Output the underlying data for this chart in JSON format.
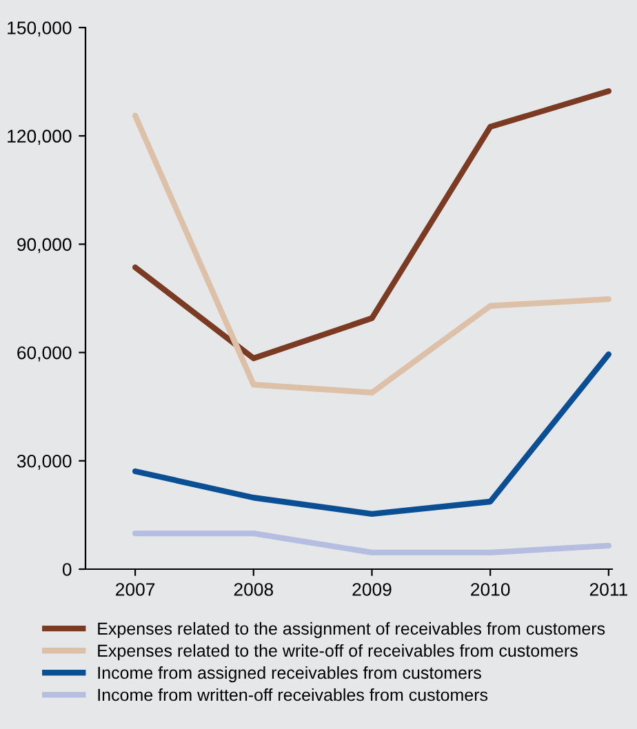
{
  "chart_data": {
    "type": "line",
    "categories": [
      "2007",
      "2008",
      "2009",
      "2010",
      "2011"
    ],
    "ylim": [
      0,
      150000
    ],
    "yticks": [
      {
        "value": 0,
        "label": "0"
      },
      {
        "value": 30000,
        "label": "30,000"
      },
      {
        "value": 60000,
        "label": "60,000"
      },
      {
        "value": 90000,
        "label": "90,000"
      },
      {
        "value": 120000,
        "label": "120,000"
      },
      {
        "value": 150000,
        "label": "150,000"
      }
    ],
    "grid": false,
    "legend": "bottom",
    "marker": "none",
    "line_style": "solid",
    "series": [
      {
        "name": "Expenses related to the assignment of receivables from customers",
        "color": "#7b3a22",
        "values": [
          83600,
          58400,
          69500,
          122500,
          132400
        ]
      },
      {
        "name": "Expenses related to the write-off of receivables from customers",
        "color": "#dcc0a8",
        "values": [
          125600,
          51100,
          48900,
          72900,
          74800
        ]
      },
      {
        "name": "Income from assigned receivables from customers",
        "color": "#0a4f93",
        "values": [
          27100,
          19800,
          15300,
          18700,
          59500
        ]
      },
      {
        "name": "Income from written-off receivables from customers",
        "color": "#b5bde0",
        "values": [
          9900,
          9900,
          4600,
          4600,
          6500
        ]
      }
    ]
  }
}
